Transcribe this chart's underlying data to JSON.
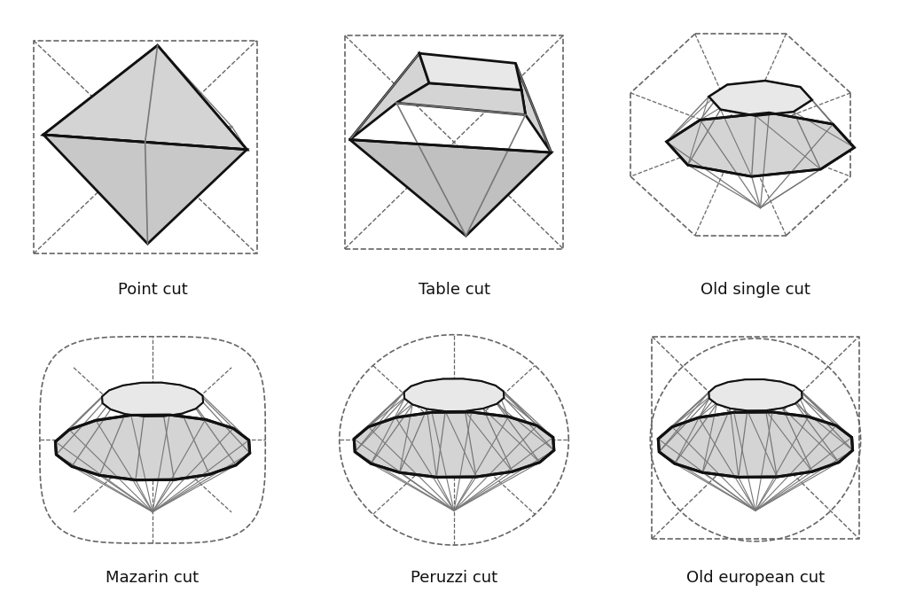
{
  "labels": [
    "Point cut",
    "Table cut",
    "Old single cut",
    "Mazarin cut",
    "Peruzzi cut",
    "Old european cut"
  ],
  "bg_color": "#ffffff",
  "face_color": "#d4d4d4",
  "edge_color": "#111111",
  "dashed_color": "#666666",
  "inner_line_color": "#777777",
  "font_size": 13,
  "label_color": "#111111"
}
